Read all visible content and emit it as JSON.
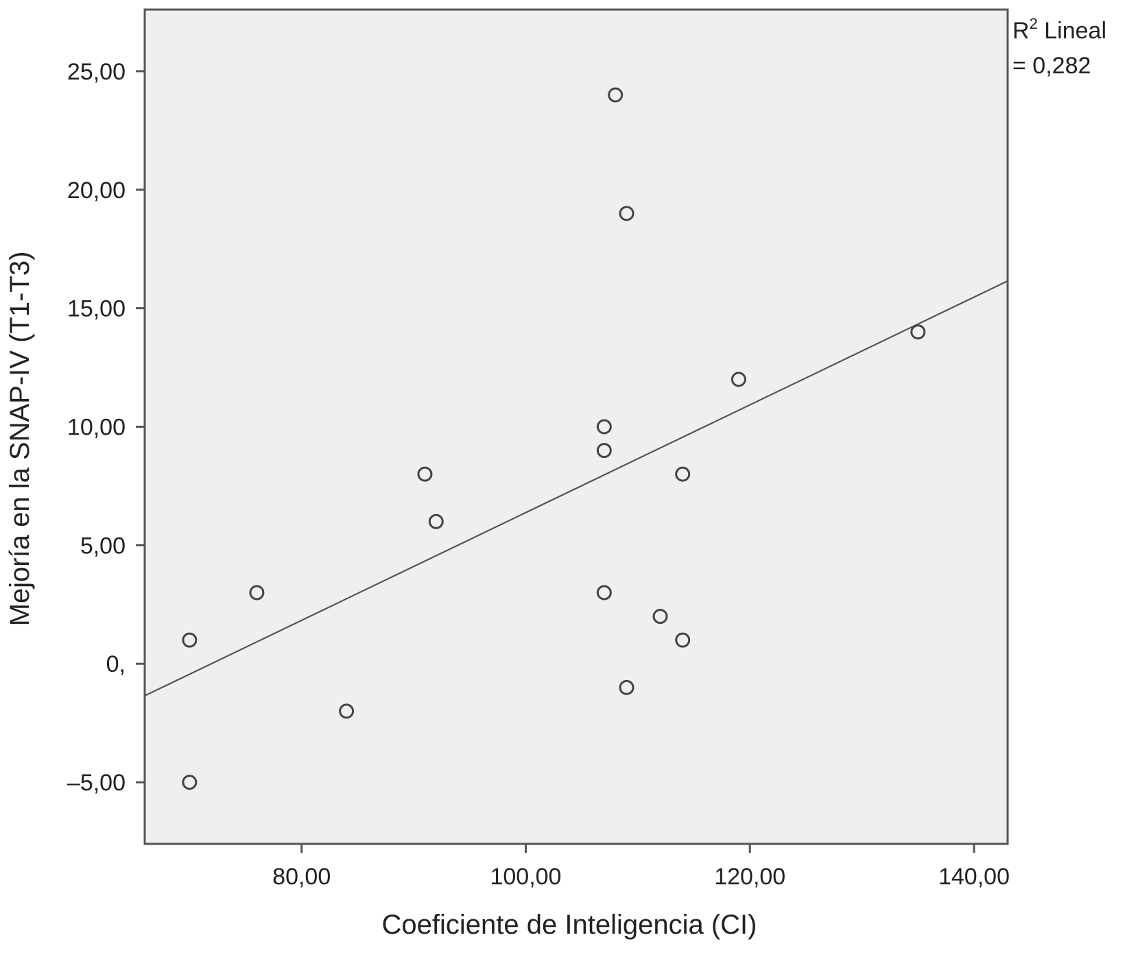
{
  "chart_data": {
    "type": "scatter",
    "xlabel": "Coeficiente de Inteligencia (CI)",
    "ylabel": "Mejoría en la SNAP-IV (T1-T3)",
    "xlim": [
      66,
      143
    ],
    "ylim": [
      -7.6,
      27.6
    ],
    "x_ticks": [
      80,
      100,
      120,
      140
    ],
    "x_tick_labels": [
      "80,00",
      "100,00",
      "120,00",
      "140,00"
    ],
    "y_ticks": [
      -5,
      0,
      5,
      10,
      15,
      20,
      25
    ],
    "y_tick_labels": [
      "–5,00",
      "0,",
      "5,00",
      "10,00",
      "15,00",
      "20,00",
      "25,00"
    ],
    "points": [
      {
        "x": 70,
        "y": 1
      },
      {
        "x": 70,
        "y": -5
      },
      {
        "x": 76,
        "y": 3
      },
      {
        "x": 84,
        "y": -2
      },
      {
        "x": 91,
        "y": 8
      },
      {
        "x": 92,
        "y": 6
      },
      {
        "x": 107,
        "y": 10
      },
      {
        "x": 107,
        "y": 9
      },
      {
        "x": 107,
        "y": 3
      },
      {
        "x": 108,
        "y": 24
      },
      {
        "x": 109,
        "y": 19
      },
      {
        "x": 109,
        "y": -1
      },
      {
        "x": 112,
        "y": 2
      },
      {
        "x": 114,
        "y": 8
      },
      {
        "x": 114,
        "y": 1
      },
      {
        "x": 119,
        "y": 12
      },
      {
        "x": 135,
        "y": 14
      }
    ],
    "fit_line": {
      "x": [
        66,
        143
      ],
      "y": [
        -1.35,
        16.15
      ]
    },
    "r2_label_line1": "R",
    "r2_label_sup": "2",
    "r2_label_line1_rest": " Lineal",
    "r2_label_line2": "= 0,282",
    "grid": false,
    "colors": {
      "plot_bg": "#efefef",
      "frame": "#555555",
      "marker": "#444444",
      "fit": "#555555"
    }
  }
}
